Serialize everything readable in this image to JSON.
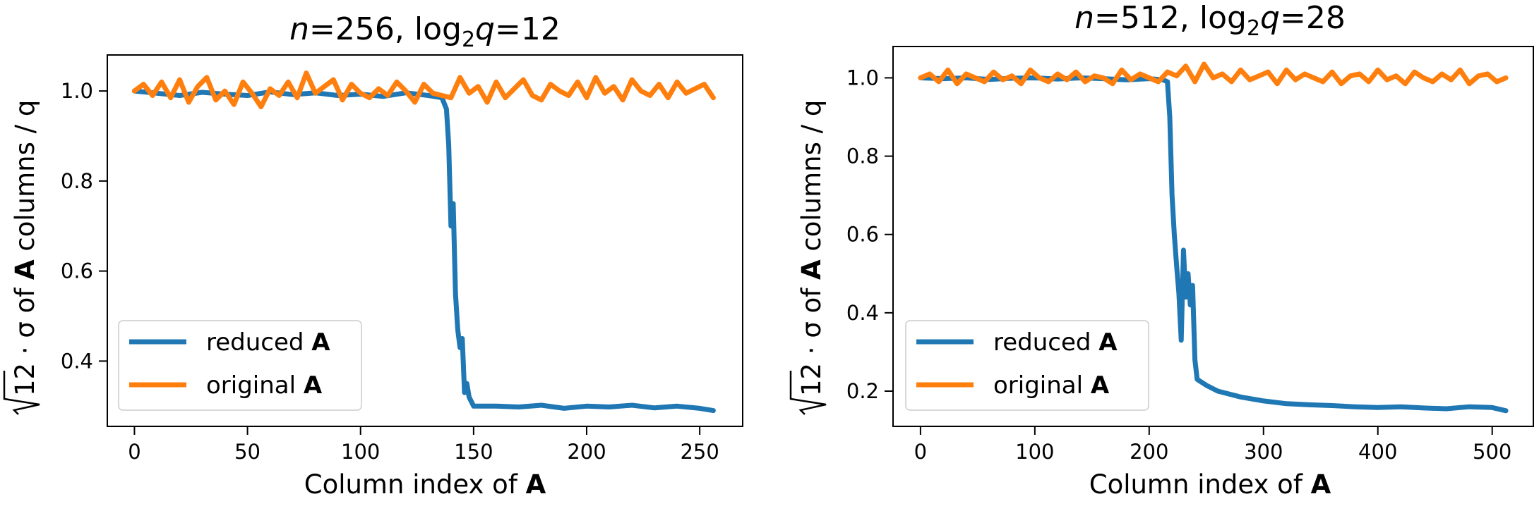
{
  "figure": {
    "legend_reduced_prefix": "reduced ",
    "legend_original_prefix": "original ",
    "matrix_symbol": "A"
  },
  "colors": {
    "reduced": "#1f77b4",
    "original": "#ff7f0e",
    "axes": "#000000"
  },
  "chart_data": [
    {
      "type": "line",
      "title_parts": {
        "n_label": "n",
        "n_value": "=256, log",
        "log_base": "2",
        "q_label": "q",
        "q_value": "=12"
      },
      "xlabel_prefix": "Column index of ",
      "ylabel_parts": {
        "sqrt_arg": "12",
        "middle": " · σ of ",
        "bold": "A",
        "suffix": " columns / q"
      },
      "xlim": [
        -12,
        269
      ],
      "ylim": [
        0.255,
        1.08
      ],
      "xticks": [
        0,
        50,
        100,
        150,
        200,
        250
      ],
      "yticks": [
        0.4,
        0.6,
        0.8,
        1.0
      ],
      "ytick_labels": [
        "0.4",
        "0.6",
        "0.8",
        "1.0"
      ],
      "legend_location": "lower left",
      "series": [
        {
          "name": "reduced A",
          "color": "#1f77b4",
          "x": [
            0,
            10,
            20,
            30,
            40,
            50,
            60,
            70,
            80,
            90,
            100,
            110,
            120,
            130,
            136,
            138,
            139,
            140,
            141,
            142,
            143,
            144,
            145,
            146,
            147,
            148,
            150,
            160,
            170,
            180,
            190,
            200,
            210,
            220,
            230,
            240,
            250,
            256
          ],
          "y": [
            1.0,
            0.995,
            0.99,
            0.997,
            0.993,
            0.99,
            0.998,
            0.992,
            0.996,
            0.99,
            0.993,
            0.988,
            0.996,
            0.99,
            0.985,
            0.96,
            0.88,
            0.7,
            0.75,
            0.55,
            0.47,
            0.43,
            0.45,
            0.33,
            0.35,
            0.32,
            0.3,
            0.3,
            0.298,
            0.302,
            0.295,
            0.3,
            0.298,
            0.302,
            0.296,
            0.3,
            0.295,
            0.29
          ]
        },
        {
          "name": "original A",
          "color": "#ff7f0e",
          "x": [
            0,
            4,
            8,
            12,
            16,
            20,
            24,
            28,
            32,
            36,
            40,
            44,
            48,
            52,
            56,
            60,
            64,
            68,
            72,
            76,
            80,
            84,
            88,
            92,
            96,
            100,
            104,
            108,
            112,
            116,
            120,
            124,
            128,
            132,
            136,
            140,
            144,
            148,
            152,
            156,
            160,
            164,
            168,
            172,
            176,
            180,
            184,
            188,
            192,
            196,
            200,
            204,
            208,
            212,
            216,
            220,
            224,
            228,
            232,
            236,
            240,
            244,
            248,
            252,
            256
          ],
          "y": [
            1.0,
            1.015,
            0.99,
            1.02,
            0.985,
            1.025,
            0.975,
            1.01,
            1.03,
            0.98,
            1.0,
            0.97,
            1.02,
            0.995,
            0.965,
            1.005,
            0.99,
            1.02,
            0.985,
            1.04,
            0.995,
            1.01,
            1.025,
            0.98,
            1.015,
            0.995,
            0.985,
            1.005,
            0.99,
            1.02,
            1.0,
            0.975,
            1.015,
            0.995,
            0.99,
            0.985,
            1.03,
            0.995,
            1.01,
            0.975,
            1.02,
            0.985,
            1.005,
            1.025,
            0.99,
            0.98,
            1.015,
            1.0,
            0.99,
            1.02,
            0.985,
            1.03,
            0.995,
            1.01,
            0.98,
            1.025,
            1.0,
            0.99,
            1.015,
            0.985,
            1.02,
            0.995,
            1.005,
            1.015,
            0.985
          ]
        }
      ]
    },
    {
      "type": "line",
      "title_parts": {
        "n_label": "n",
        "n_value": "=512, log",
        "log_base": "2",
        "q_label": "q",
        "q_value": "=28"
      },
      "xlabel_prefix": "Column index of ",
      "ylabel_parts": {
        "sqrt_arg": "12",
        "middle": " · σ of ",
        "bold": "A",
        "suffix": " columns / q"
      },
      "xlim": [
        -24,
        536
      ],
      "ylim": [
        0.11,
        1.08
      ],
      "xticks": [
        0,
        100,
        200,
        300,
        400,
        500
      ],
      "yticks": [
        0.2,
        0.4,
        0.6,
        0.8,
        1.0
      ],
      "ytick_labels": [
        "0.2",
        "0.4",
        "0.6",
        "0.8",
        "1.0"
      ],
      "legend_location": "lower left",
      "series": [
        {
          "name": "reduced A",
          "color": "#1f77b4",
          "x": [
            0,
            20,
            40,
            60,
            80,
            100,
            120,
            140,
            160,
            180,
            200,
            212,
            216,
            218,
            220,
            222,
            224,
            226,
            228,
            230,
            232,
            234,
            236,
            238,
            240,
            242,
            250,
            260,
            280,
            300,
            320,
            340,
            360,
            380,
            400,
            420,
            440,
            460,
            480,
            500,
            512
          ],
          "y": [
            1.0,
            0.998,
            1.0,
            0.996,
            0.999,
            1.0,
            0.997,
            1.0,
            0.998,
            0.995,
            0.998,
            0.995,
            0.99,
            0.9,
            0.7,
            0.6,
            0.52,
            0.45,
            0.33,
            0.56,
            0.44,
            0.5,
            0.42,
            0.47,
            0.28,
            0.23,
            0.215,
            0.2,
            0.185,
            0.175,
            0.168,
            0.165,
            0.163,
            0.16,
            0.158,
            0.16,
            0.157,
            0.155,
            0.16,
            0.158,
            0.15
          ]
        },
        {
          "name": "original A",
          "color": "#ff7f0e",
          "x": [
            0,
            8,
            16,
            24,
            32,
            40,
            48,
            56,
            64,
            72,
            80,
            88,
            96,
            104,
            112,
            120,
            128,
            136,
            144,
            152,
            160,
            168,
            176,
            184,
            192,
            200,
            208,
            216,
            224,
            232,
            240,
            248,
            256,
            264,
            272,
            280,
            288,
            296,
            304,
            312,
            320,
            328,
            336,
            344,
            352,
            360,
            368,
            376,
            384,
            392,
            400,
            408,
            416,
            424,
            432,
            440,
            448,
            456,
            464,
            472,
            480,
            488,
            496,
            504,
            512
          ],
          "y": [
            1.0,
            1.01,
            0.99,
            1.02,
            0.985,
            1.01,
            1.0,
            0.99,
            1.015,
            0.995,
            1.005,
            0.985,
            1.02,
            1.0,
            0.99,
            1.01,
            0.995,
            1.015,
            0.99,
            1.005,
            1.0,
            0.985,
            1.02,
            0.995,
            1.01,
            1.0,
            0.99,
            1.015,
            1.005,
            1.03,
            0.99,
            1.035,
            1.0,
            1.01,
            0.99,
            1.02,
            0.995,
            1.005,
            1.015,
            0.985,
            1.02,
            0.995,
            1.01,
            1.0,
            0.99,
            1.015,
            0.985,
            1.005,
            1.01,
            0.99,
            1.02,
            0.995,
            1.005,
            0.985,
            1.015,
            1.0,
            0.99,
            1.01,
            0.995,
            1.02,
            0.985,
            1.005,
            1.01,
            0.99,
            1.0
          ]
        }
      ]
    }
  ]
}
